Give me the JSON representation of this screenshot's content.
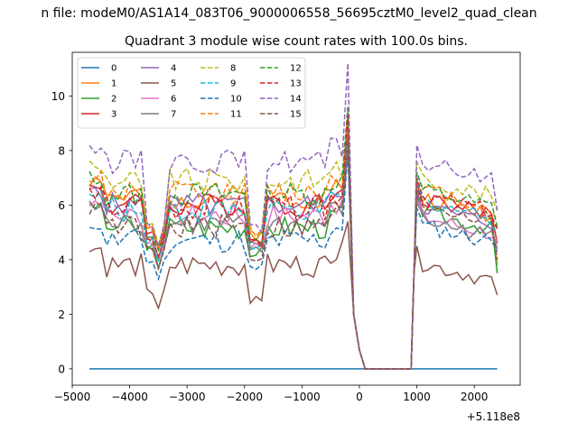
{
  "figure": {
    "suptitle": "n file: modeM0/AS1A14_083T06_9000006558_56695cztM0_level2_quad_clean",
    "offset_label": "+5.118e8"
  },
  "chart_data": {
    "type": "line",
    "title": "Quadrant 3 module wise count rates with 100.0s bins.",
    "xlabel": "",
    "ylabel": "",
    "x_offset": 511800000,
    "xlim": [
      -5000,
      2800
    ],
    "ylim": [
      -0.6,
      11.6
    ],
    "xticks": [
      -5000,
      -4000,
      -3000,
      -2000,
      -1000,
      0,
      1000,
      2000
    ],
    "xtick_labels": [
      "−5000",
      "−4000",
      "−3000",
      "−2000",
      "−1000",
      "0",
      "1000",
      "2000"
    ],
    "yticks": [
      0,
      2,
      4,
      6,
      8,
      10
    ],
    "ytick_labels": [
      "0",
      "2",
      "4",
      "6",
      "8",
      "10"
    ],
    "grid": false,
    "legend_position": "upper-left",
    "x_segments": [
      {
        "start": -4700,
        "step": 100,
        "count": 46
      },
      {
        "start": 1000,
        "step": 100,
        "count": 15
      }
    ],
    "gap_points": [
      [
        -100,
        2.0
      ],
      [
        0,
        0.7
      ],
      [
        100,
        0
      ],
      [
        900,
        0
      ],
      [
        950,
        3.5
      ]
    ],
    "series": [
      {
        "name": "0",
        "color": "#1f77b4",
        "dash": "solid",
        "constant": 0
      },
      {
        "name": "1",
        "color": "#ff7f0e",
        "dash": "solid",
        "base": 6.3,
        "trough": 4.6,
        "peak": 8.9,
        "after": 6.9,
        "end": 3.8,
        "seed": 2
      },
      {
        "name": "2",
        "color": "#2ca02c",
        "dash": "solid",
        "base": 5.2,
        "trough": 4.0,
        "peak": 8.3,
        "after": 6.4,
        "end": 3.5,
        "seed": 3
      },
      {
        "name": "3",
        "color": "#d62728",
        "dash": "solid",
        "base": 6.0,
        "trough": 4.5,
        "peak": 9.0,
        "after": 6.9,
        "end": 4.6,
        "seed": 4
      },
      {
        "name": "4",
        "color": "#9467bd",
        "dash": "solid",
        "base": 6.0,
        "trough": 4.3,
        "peak": 8.8,
        "after": 6.6,
        "end": 4.4,
        "seed": 5
      },
      {
        "name": "5",
        "color": "#8c564b",
        "dash": "solid",
        "base": 3.8,
        "trough": 2.3,
        "peak": 5.4,
        "after": 4.5,
        "end": 2.7,
        "seed": 6
      },
      {
        "name": "6",
        "color": "#e377c2",
        "dash": "solid",
        "base": 5.6,
        "trough": 4.2,
        "peak": 8.2,
        "after": 6.2,
        "end": 4.7,
        "seed": 7
      },
      {
        "name": "7",
        "color": "#7f7f7f",
        "dash": "solid",
        "base": 5.3,
        "trough": 4.0,
        "peak": 8.0,
        "after": 6.1,
        "end": 4.4,
        "seed": 8
      },
      {
        "name": "8",
        "color": "#bcbd22",
        "dash": "dashed",
        "base": 6.9,
        "trough": 4.7,
        "peak": 9.2,
        "after": 7.6,
        "end": 5.8,
        "seed": 9
      },
      {
        "name": "9",
        "color": "#17becf",
        "dash": "dashed",
        "base": 5.8,
        "trough": 4.2,
        "peak": 8.6,
        "after": 6.8,
        "end": 5.0,
        "seed": 10
      },
      {
        "name": "10",
        "color": "#1f77b4",
        "dash": "dashed",
        "base": 4.7,
        "trough": 3.4,
        "peak": 8.0,
        "after": 5.9,
        "end": 4.3,
        "seed": 11
      },
      {
        "name": "11",
        "color": "#ff7f0e",
        "dash": "dashed",
        "base": 6.5,
        "trough": 4.6,
        "peak": 9.4,
        "after": 7.2,
        "end": 5.5,
        "seed": 12
      },
      {
        "name": "12",
        "color": "#2ca02c",
        "dash": "dashed",
        "base": 6.4,
        "trough": 4.4,
        "peak": 9.6,
        "after": 7.2,
        "end": 5.2,
        "seed": 13
      },
      {
        "name": "13",
        "color": "#d62728",
        "dash": "dashed",
        "base": 5.9,
        "trough": 4.3,
        "peak": 9.3,
        "after": 7.0,
        "end": 5.1,
        "seed": 14
      },
      {
        "name": "14",
        "color": "#9467bd",
        "dash": "dashed",
        "base": 7.6,
        "trough": 4.8,
        "peak": 11.2,
        "after": 8.2,
        "end": 5.8,
        "seed": 15
      },
      {
        "name": "15",
        "color": "#8c564b",
        "dash": "dashed",
        "base": 5.2,
        "trough": 3.8,
        "peak": 8.5,
        "after": 6.7,
        "end": 4.0,
        "seed": 16
      }
    ]
  }
}
